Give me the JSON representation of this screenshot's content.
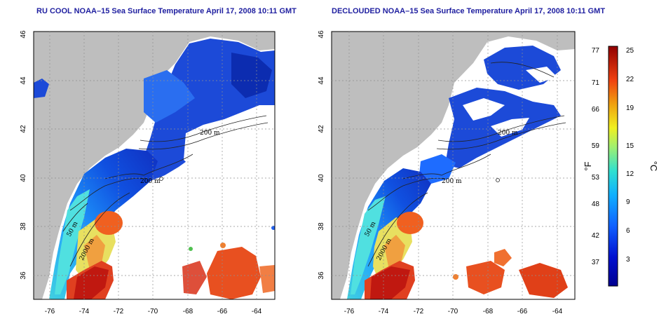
{
  "panels": [
    {
      "title": "RU COOL NOAA–15 Sea Surface Temperature April 17, 2008 10:11 GMT"
    },
    {
      "title": "DECLOUDED NOAA–15 Sea Surface Temperature April 17, 2008 10:11 GMT"
    }
  ],
  "map_axes": {
    "lon_ticks": [
      "-76",
      "-74",
      "-72",
      "-70",
      "-68",
      "-66",
      "-64"
    ],
    "lat_ticks": [
      "36",
      "38",
      "40",
      "42",
      "44",
      "46"
    ],
    "lon_range": [
      -77,
      -63
    ],
    "lat_range": [
      35,
      46
    ],
    "grid": "dotted"
  },
  "contours": {
    "label_200": "200 m",
    "label_50": "50 m",
    "label_2000": "2000 m",
    "label_o": "o"
  },
  "colorbar": {
    "fahrenheit_ticks": [
      "77",
      "71",
      "66",
      "59",
      "53",
      "48",
      "42",
      "37"
    ],
    "celsius_ticks": [
      "25",
      "22",
      "19",
      "15",
      "12",
      "9",
      "6",
      "3"
    ],
    "fahrenheit_unit": "°F",
    "celsius_unit": "°C",
    "range_c": [
      0,
      26
    ]
  },
  "colors": {
    "land": "#bebebe",
    "cold": "#1030c8",
    "cool": "#1e6cff",
    "teal": "#20c8d8",
    "warm": "#f0d020",
    "hot": "#f05010",
    "very_hot": "#a01010",
    "title": "#1f1fa0"
  }
}
